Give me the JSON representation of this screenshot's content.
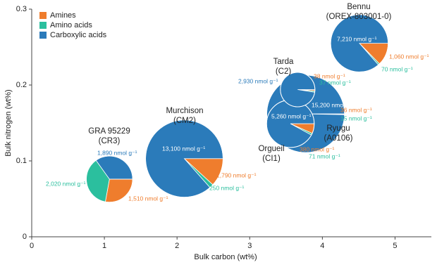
{
  "chart_data": {
    "type": "pie-scatter",
    "x_label": "Bulk carbon (wt%)",
    "y_label": "Bulk nitrogen (wt%)",
    "xlim": [
      0,
      5.5
    ],
    "ylim": [
      0,
      0.3
    ],
    "xticks": [
      0,
      1,
      2,
      3,
      4,
      5
    ],
    "yticks": [
      0,
      0.1,
      0.2,
      0.3
    ],
    "legend": "upper left",
    "series": [
      {
        "name": "Amines",
        "color": "#ef7d2d"
      },
      {
        "name": "Amino acids",
        "color": "#2bbf9e"
      },
      {
        "name": "Carboxylic acids",
        "color": "#2b7bba"
      }
    ],
    "points": [
      {
        "name": "GRA 95229",
        "subname": "(CR3)",
        "x": 1.07,
        "y": 0.076,
        "values": [
          1510,
          2020,
          1890
        ],
        "value_labels": [
          "1,510 nmol g⁻¹",
          "2,020 nmol g⁻¹",
          "1,890 nmol g⁻¹"
        ]
      },
      {
        "name": "Murchison",
        "subname": "(CM2)",
        "x": 2.1,
        "y": 0.103,
        "values": [
          1790,
          250,
          13100
        ],
        "value_labels": [
          "1,790 nmol g⁻¹",
          "250 nmol g⁻¹",
          "13,100 nmol g⁻¹"
        ]
      },
      {
        "name": "Ryugu",
        "subname": "(A0106)",
        "x": 3.77,
        "y": 0.162,
        "values": [
          36,
          15,
          15200
        ],
        "value_labels": [
          "36 nmol g⁻¹",
          "15 nmol g⁻¹",
          "15,200 nmol g⁻¹"
        ]
      },
      {
        "name": "Orgueil",
        "subname": "(CI1)",
        "x": 3.56,
        "y": 0.149,
        "values": [
          380,
          71,
          5260
        ],
        "value_labels": [
          "380 nmol g⁻¹",
          "71 nmol g⁻¹",
          "5,260 nmol g⁻¹"
        ]
      },
      {
        "name": "Tarda",
        "subname": "(C2)",
        "x": 3.66,
        "y": 0.194,
        "values": [
          38,
          37,
          2930
        ],
        "value_labels": [
          "38 nmol g⁻¹",
          "37 nmol g⁻¹",
          "2,930 nmol g⁻¹"
        ]
      },
      {
        "name": "Bennu",
        "subname": "(OREX-803001-0)",
        "x": 4.51,
        "y": 0.255,
        "values": [
          1060,
          70,
          7210
        ],
        "value_labels": [
          "1,060 nmol g⁻¹",
          "70 nmol g⁻¹",
          "7,210 nmol g⁻¹"
        ]
      }
    ]
  }
}
